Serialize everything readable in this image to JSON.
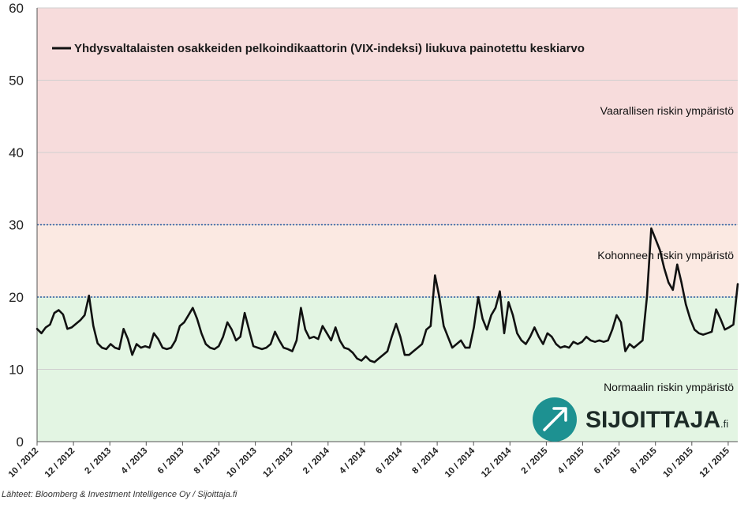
{
  "chart_data": {
    "type": "line",
    "title": "",
    "xlabel": "",
    "ylabel": "",
    "ylim": [
      0,
      60
    ],
    "yticks": [
      "0",
      "10",
      "20",
      "30",
      "40",
      "50",
      "60"
    ],
    "grid": true,
    "legend": {
      "position": "top-left",
      "entries": [
        "Yhdysvaltalaisten osakkeiden pelkoindikaattorin (VIX-indeksi) liukuva painotettu keskiarvo"
      ]
    },
    "xticks": [
      "10 / 2012",
      "12 / 2012",
      "2 / 2013",
      "4 / 2013",
      "6 / 2013",
      "8 / 2013",
      "10 / 2013",
      "12 / 2013",
      "2 / 2014",
      "4 / 2014",
      "6 / 2014",
      "8 / 2014",
      "10 / 2014",
      "12 / 2014",
      "2 / 2015",
      "4 / 2015",
      "6 / 2015",
      "8 / 2015",
      "10 / 2015",
      "12 / 2015"
    ],
    "zones": [
      {
        "label": "Normaalin riskin ympäristö",
        "from": 0,
        "to": 20,
        "color": "#e3f5e3"
      },
      {
        "label": "Kohonneen riskin ympäristö",
        "from": 20,
        "to": 30,
        "color": "#fbe9e2"
      },
      {
        "label": "Vaarallisen riskin ympäristö",
        "from": 30,
        "to": 60,
        "color": "#f7dcdc"
      }
    ],
    "thresholds": [
      20,
      30
    ],
    "series": [
      {
        "name": "Yhdysvaltalaisten osakkeiden pelkoindikaattorin (VIX-indeksi) liukuva painotettu keskiarvo",
        "color": "#111111",
        "x_start": "10 / 2012",
        "x_end": "12 / 2015",
        "values": [
          15.6,
          15.0,
          15.8,
          16.2,
          17.8,
          18.2,
          17.6,
          15.6,
          15.8,
          16.3,
          16.8,
          17.5,
          20.2,
          16.0,
          13.6,
          13.0,
          12.8,
          13.5,
          13.0,
          12.8,
          15.6,
          14.2,
          12.0,
          13.5,
          13.0,
          13.2,
          13.0,
          15.0,
          14.2,
          13.0,
          12.8,
          13.0,
          14.0,
          16.0,
          16.5,
          17.5,
          18.5,
          17.0,
          15.0,
          13.5,
          13.0,
          12.8,
          13.2,
          14.5,
          16.5,
          15.5,
          14.0,
          14.5,
          17.8,
          15.5,
          13.2,
          13.0,
          12.8,
          13.0,
          13.5,
          15.2,
          14.0,
          13.0,
          12.8,
          12.5,
          14.0,
          18.5,
          15.5,
          14.3,
          14.5,
          14.2,
          16.0,
          15.0,
          14.0,
          15.8,
          14.0,
          13.0,
          12.8,
          12.3,
          11.5,
          11.2,
          11.8,
          11.2,
          11.0,
          11.5,
          12.0,
          12.5,
          14.5,
          16.3,
          14.5,
          12.0,
          12.0,
          12.5,
          13.0,
          13.5,
          15.5,
          16.0,
          23.0,
          20.0,
          16.0,
          14.5,
          13.0,
          13.5,
          14.0,
          13.0,
          13.0,
          15.8,
          20.0,
          17.0,
          15.5,
          17.5,
          18.5,
          20.8,
          15.0,
          19.3,
          17.5,
          15.0,
          14.0,
          13.5,
          14.5,
          15.8,
          14.5,
          13.5,
          15.0,
          14.5,
          13.5,
          13.0,
          13.2,
          13.0,
          13.8,
          13.5,
          13.8,
          14.5,
          14.0,
          13.8,
          14.0,
          13.8,
          14.0,
          15.5,
          17.5,
          16.5,
          12.5,
          13.5,
          13.0,
          13.5,
          14.0,
          20.0,
          29.5,
          28.0,
          26.5,
          24.0,
          22.0,
          21.0,
          24.5,
          22.0,
          19.0,
          17.0,
          15.5,
          15.0,
          14.8,
          15.0,
          15.2,
          18.3,
          17.0,
          15.5,
          15.8,
          16.2,
          21.8
        ]
      }
    ]
  },
  "brand": {
    "name": "SIJOITTAJA",
    "suffix": ".fi",
    "color": "#1d9191"
  },
  "footer": {
    "source": "Lähteet: Bloomberg & Investment Intelligence Oy / Sijoittaja.fi"
  }
}
